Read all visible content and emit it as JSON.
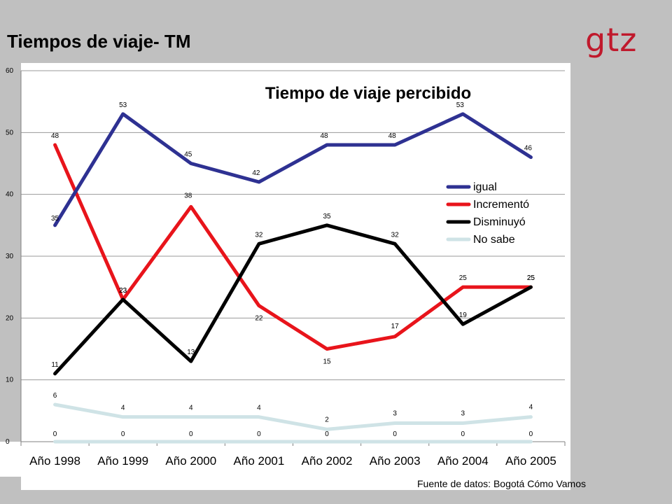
{
  "slide": {
    "title": "Tiempos de viaje- TM",
    "logo_text": "gtz",
    "source": "Fuente de datos: Bogotá Cómo Vamos"
  },
  "colors": {
    "igual": "#2e3192",
    "incremento": "#e8141b",
    "disminuyo": "#000000",
    "no_sabe": "#cfe3e6",
    "logo": "#c0192c",
    "band": "#c0c0c0"
  },
  "chart_data": {
    "type": "line",
    "title": "Tiempo de viaje percibido",
    "xlabel": "",
    "ylabel": "",
    "categories": [
      "Año 1998",
      "Año 1999",
      "Año 2000",
      "Año 2001",
      "Año 2002",
      "Año 2003",
      "Año 2004",
      "Año 2005"
    ],
    "ylim": [
      0,
      60
    ],
    "yticks": [
      0,
      10,
      20,
      30,
      40,
      50,
      60
    ],
    "grid": true,
    "legend_position": "right",
    "series": [
      {
        "name": "igual",
        "color": "#2e3192",
        "values": [
          35,
          53,
          45,
          42,
          48,
          48,
          53,
          46
        ]
      },
      {
        "name": "Incrementó",
        "color": "#e8141b",
        "values": [
          48,
          23,
          38,
          22,
          15,
          17,
          25,
          25
        ]
      },
      {
        "name": "Disminuyó",
        "color": "#000000",
        "values": [
          11,
          23,
          13,
          32,
          35,
          32,
          19,
          25
        ]
      },
      {
        "name": "No sabe",
        "color": "#cfe3e6",
        "values": [
          6,
          4,
          4,
          4,
          2,
          3,
          3,
          4
        ]
      },
      {
        "color": "#cfe3e6",
        "values": [
          0,
          0,
          0,
          0,
          0,
          0,
          0,
          0
        ]
      }
    ]
  }
}
